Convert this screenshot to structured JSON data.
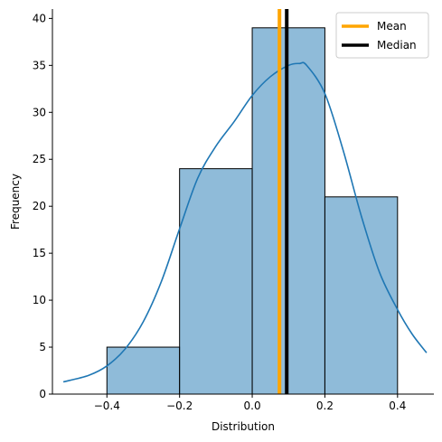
{
  "chart_data": {
    "type": "bar",
    "xlabel": "Distribution",
    "ylabel": "Frequency",
    "xlim": [
      -0.55,
      0.5
    ],
    "ylim": [
      0,
      41
    ],
    "xticks": [
      -0.4,
      -0.2,
      0.0,
      0.2,
      0.4
    ],
    "xtick_labels": [
      "−0.4",
      "−0.2",
      "0.0",
      "0.2",
      "0.4"
    ],
    "yticks": [
      0,
      5,
      10,
      15,
      20,
      25,
      30,
      35,
      40
    ],
    "yticks_labels": [
      "0",
      "5",
      "10",
      "15",
      "20",
      "25",
      "30",
      "35",
      "40"
    ],
    "grid": false,
    "bins": [
      {
        "x0": -0.4,
        "x1": -0.2,
        "count": 5
      },
      {
        "x0": -0.2,
        "x1": 0.0,
        "count": 24
      },
      {
        "x0": 0.0,
        "x1": 0.2,
        "count": 39
      },
      {
        "x0": 0.2,
        "x1": 0.4,
        "count": 21
      }
    ],
    "kde": {
      "x": [
        -0.52,
        -0.45,
        -0.4,
        -0.35,
        -0.3,
        -0.25,
        -0.2,
        -0.15,
        -0.1,
        -0.05,
        0.0,
        0.05,
        0.1,
        0.13,
        0.15,
        0.2,
        0.25,
        0.3,
        0.35,
        0.4,
        0.44,
        0.48
      ],
      "y": [
        1.3,
        2.0,
        3.0,
        4.8,
        7.7,
        12.0,
        17.6,
        23.0,
        26.4,
        29.0,
        31.8,
        33.8,
        35.0,
        35.2,
        35.0,
        32.0,
        26.0,
        19.0,
        13.0,
        9.0,
        6.4,
        4.4
      ]
    },
    "vlines": [
      {
        "name": "Mean",
        "x": 0.075,
        "color": "#FFA500"
      },
      {
        "name": "Median",
        "x": 0.095,
        "color": "#000000"
      }
    ],
    "legend": {
      "placement": "top-right",
      "entries": [
        "Mean",
        "Median"
      ]
    },
    "colors": {
      "bar_fill": "#1f77b4",
      "bar_edge": "#000000",
      "kde_line": "#1f77b4"
    }
  }
}
